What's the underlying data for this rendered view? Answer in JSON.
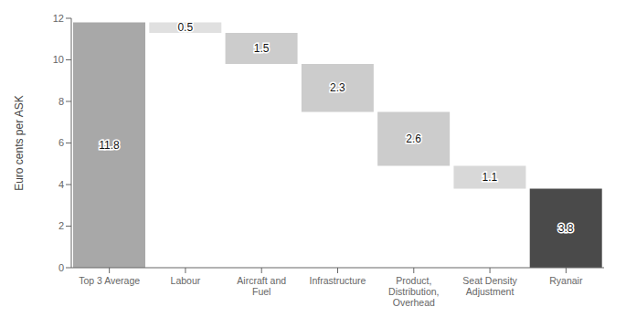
{
  "chart_data": {
    "type": "waterfall",
    "categories": [
      "Top 3 Average",
      "Labour",
      "Aircraft and\nFuel",
      "Infrastructure",
      "Product,\nDistribution,\nOverhead",
      "Seat Density\nAdjustment",
      "Ryanair"
    ],
    "bottoms": [
      0,
      11.3,
      9.8,
      7.5,
      4.9,
      3.8,
      0
    ],
    "values": [
      11.8,
      0.5,
      1.5,
      2.3,
      2.6,
      1.1,
      3.8
    ],
    "colors": [
      "#a8a8a8",
      "#e0e0e0",
      "#cccccc",
      "#cccccc",
      "#cccccc",
      "#d8d8d8",
      "#4a4a4a"
    ],
    "ylabel": "Euro cents per ASK",
    "ylim": [
      0,
      12
    ],
    "yticks": [
      0,
      2,
      4,
      6,
      8,
      10,
      12
    ],
    "grid": false,
    "data_labels": true
  }
}
